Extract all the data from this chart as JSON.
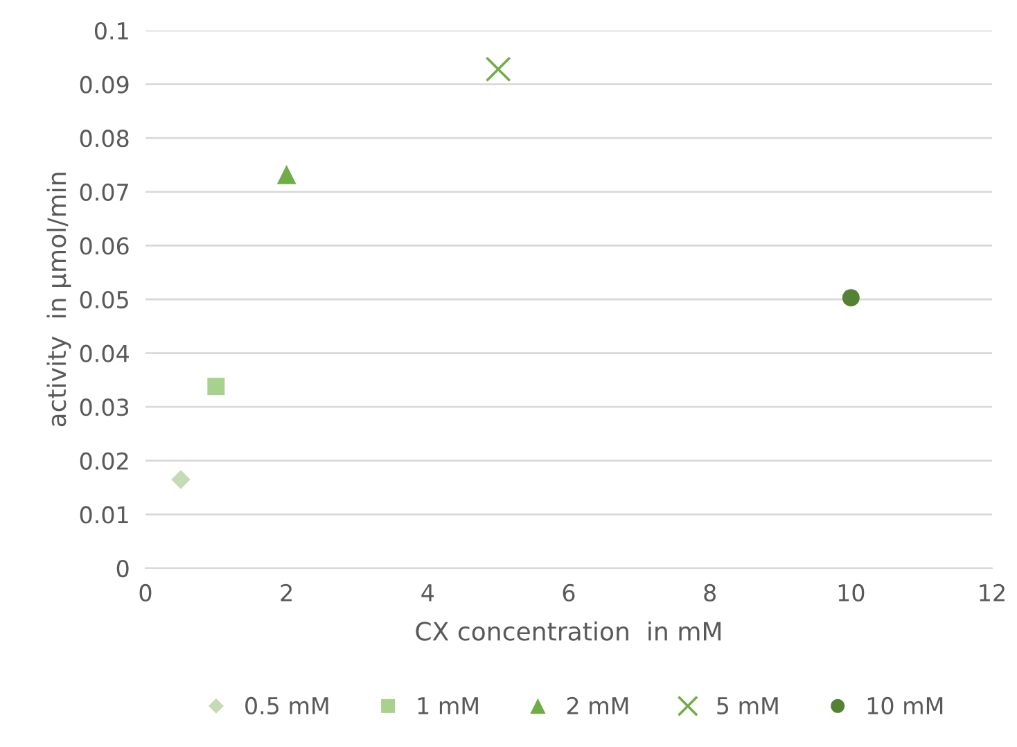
{
  "chart_data": {
    "type": "scatter",
    "xlabel": "CX concentration  in mM",
    "ylabel": "activity  in µmol/min",
    "xlim": [
      0,
      12
    ],
    "xticks": [
      0,
      2,
      4,
      6,
      8,
      10,
      12
    ],
    "ylim": [
      0,
      0.1
    ],
    "yticks": [
      {
        "value": 0,
        "label": "0"
      },
      {
        "value": 0.01,
        "label": "0.01"
      },
      {
        "value": 0.02,
        "label": "0.02"
      },
      {
        "value": 0.03,
        "label": "0.03"
      },
      {
        "value": 0.04,
        "label": "0.04"
      },
      {
        "value": 0.05,
        "label": "0.05"
      },
      {
        "value": 0.06,
        "label": "0.06"
      },
      {
        "value": 0.07,
        "label": "0.07"
      },
      {
        "value": 0.08,
        "label": "0.08"
      },
      {
        "value": 0.09,
        "label": "0.09"
      },
      {
        "value": 0.1,
        "label": "0.1"
      }
    ],
    "grid": "y",
    "legend": "bottom",
    "series": [
      {
        "name": "0.5 mM",
        "color": "#c5dbb5",
        "marker": "diamond",
        "x": [
          0.5
        ],
        "values": [
          0.0165
        ]
      },
      {
        "name": "1 mM",
        "color": "#a9d18e",
        "marker": "square",
        "x": [
          1
        ],
        "values": [
          0.0338
        ]
      },
      {
        "name": "2 mM",
        "color": "#70ad47",
        "marker": "triangle",
        "x": [
          2
        ],
        "values": [
          0.0732
        ]
      },
      {
        "name": "5 mM",
        "color": "#70ad47",
        "marker": "cross",
        "x": [
          5
        ],
        "values": [
          0.0928
        ]
      },
      {
        "name": "10 mM",
        "color": "#548235",
        "marker": "circle",
        "x": [
          10
        ],
        "values": [
          0.0503
        ]
      }
    ]
  }
}
